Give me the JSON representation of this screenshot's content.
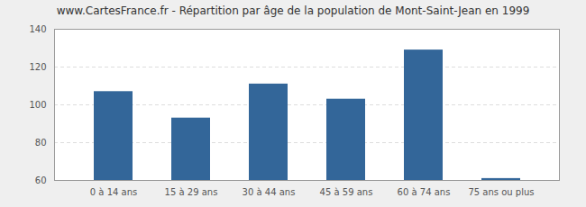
{
  "chart_data": {
    "type": "bar",
    "title": "www.CartesFrance.fr - Répartition par âge de la population de Mont-Saint-Jean en 1999",
    "categories": [
      "0 à 14 ans",
      "15 à 29 ans",
      "30 à 44 ans",
      "45 à 59 ans",
      "60 à 74 ans",
      "75 ans ou plus"
    ],
    "values": [
      107,
      93,
      111,
      103,
      129,
      61
    ],
    "color": "#336699",
    "ylim": [
      60,
      140
    ],
    "yticks": [
      60,
      80,
      100,
      120,
      140
    ],
    "grid": true
  }
}
